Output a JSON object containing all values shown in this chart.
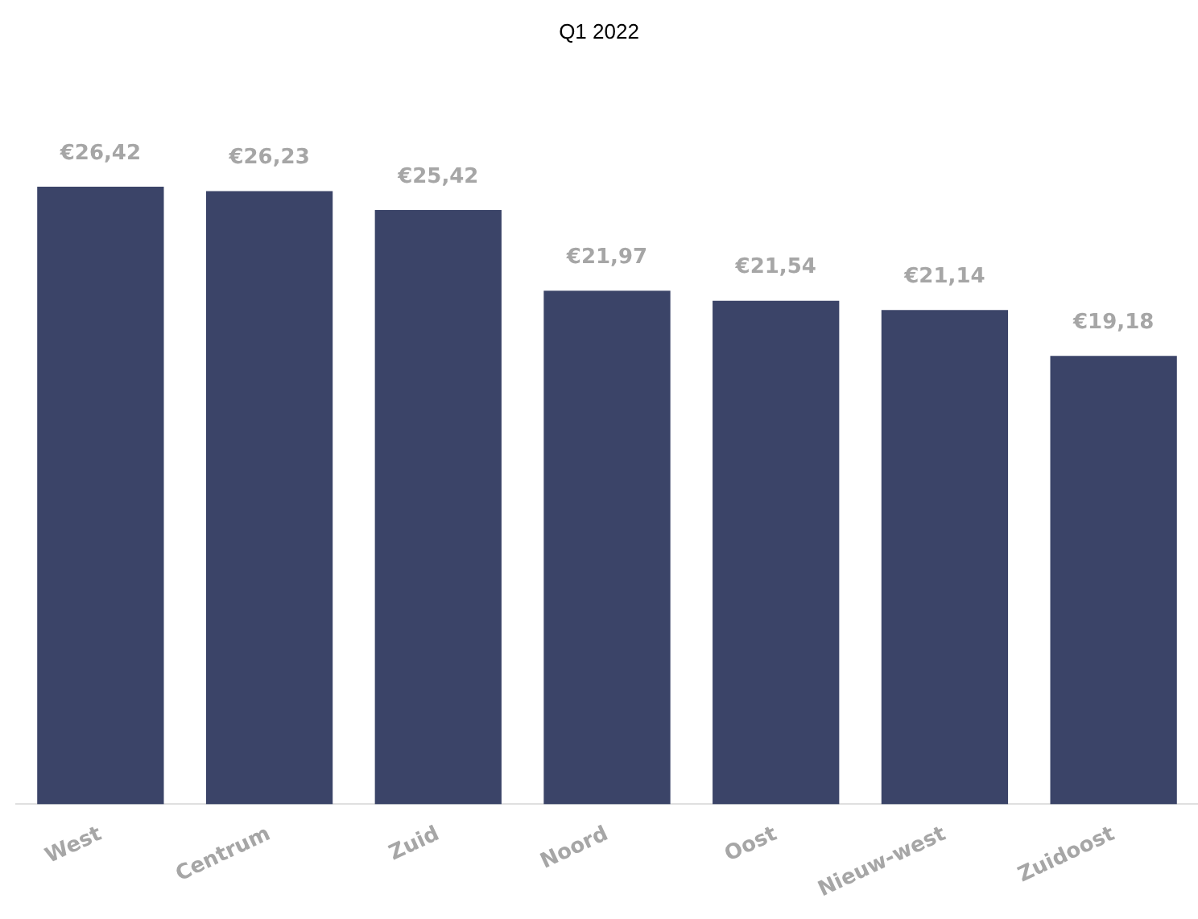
{
  "chart_data": {
    "type": "bar",
    "subtitle": "Q1 2022",
    "categories": [
      "West",
      "Centrum",
      "Zuid",
      "Noord",
      "Oost",
      "Nieuw-west",
      "Zuidoost"
    ],
    "values": [
      26.42,
      26.23,
      25.42,
      21.97,
      21.54,
      21.14,
      19.18
    ],
    "value_labels": [
      "€26,42",
      "€26,23",
      "€25,42",
      "€21,97",
      "€21,54",
      "€21,14",
      "€19,18"
    ],
    "color": "#3b4468",
    "grid": false,
    "legend": false,
    "tick_labels": "x"
  }
}
